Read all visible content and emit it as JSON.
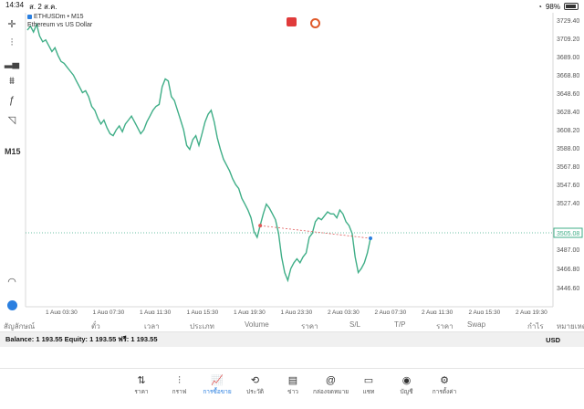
{
  "status": {
    "time": "14:34",
    "date": "ส. 2 ส.ค.",
    "battery": "98%"
  },
  "chart": {
    "symbol": "ETHUSDm • M15",
    "description": "Ethereum vs US Dollar",
    "timeframe": "M15",
    "current_price": "3505.08",
    "price_axis": [
      "3729.40",
      "3709.20",
      "3689.00",
      "3668.80",
      "3648.60",
      "3628.40",
      "3608.20",
      "3588.00",
      "3567.80",
      "3547.60",
      "3527.40",
      "3505.08",
      "3487.00",
      "3466.80",
      "3446.60"
    ],
    "time_axis": [
      "1 Aug 03:30",
      "1 Aug 07:30",
      "1 Aug 11:30",
      "1 Aug 15:30",
      "1 Aug 19:30",
      "1 Aug 23:30",
      "2 Aug 03:30",
      "2 Aug 07:30",
      "2 Aug 11:30",
      "2 Aug 15:30",
      "2 Aug 19:30"
    ],
    "colors": {
      "line": "#3fae87",
      "trend": "#e05a5a",
      "price_label": "#3fae87"
    }
  },
  "chart_data": {
    "type": "line",
    "y_range": [
      3435,
      3732
    ],
    "series": [
      {
        "values": [
          3718,
          3722,
          3716,
          3724,
          3712,
          3706,
          3708,
          3702,
          3696,
          3700,
          3692,
          3686,
          3684,
          3680,
          3676,
          3672,
          3666,
          3660,
          3654,
          3656,
          3650,
          3640,
          3636,
          3628,
          3622,
          3626,
          3618,
          3612,
          3610,
          3616,
          3620,
          3614,
          3622,
          3626,
          3630,
          3624,
          3618,
          3612,
          3616,
          3624,
          3630,
          3636,
          3640,
          3642,
          3660,
          3668,
          3666,
          3650,
          3646,
          3636,
          3626,
          3616,
          3600,
          3596,
          3606,
          3610,
          3600,
          3612,
          3624,
          3632,
          3636,
          3624,
          3608,
          3596,
          3586,
          3580,
          3574,
          3566,
          3560,
          3556,
          3546,
          3540,
          3534,
          3526,
          3512,
          3506,
          3518,
          3530,
          3540,
          3536,
          3530,
          3524,
          3510,
          3486,
          3470,
          3462,
          3474,
          3480,
          3484,
          3480,
          3486,
          3490,
          3506,
          3510,
          3522,
          3526,
          3524,
          3528,
          3532,
          3530,
          3530,
          3526,
          3534,
          3530,
          3522,
          3518,
          3510,
          3486,
          3470,
          3474,
          3480,
          3490,
          3505
        ]
      }
    ]
  },
  "toolbar": {
    "icons": [
      "crosshair-icon",
      "candles-icon",
      "bars-icon",
      "indicators-icon",
      "function-icon",
      "shapes-icon"
    ]
  },
  "tabs": [
    "สัญลักษณ์",
    "ตั๋ว",
    "เวลา",
    "ประเภท",
    "Volume",
    "ราคา",
    "S/L",
    "T/P",
    "ราคา",
    "Swap",
    "กำไร",
    "หมายเหตุ"
  ],
  "balance": {
    "text": "Balance: 1 193.55 Equity: 1 193.55 ฟรี: 1 193.55",
    "currency": "USD"
  },
  "nav": [
    {
      "label": "ราคา",
      "icon": "quotes-icon"
    },
    {
      "label": "กราฟ",
      "icon": "chart-icon"
    },
    {
      "label": "การซื้อขาย",
      "icon": "trade-icon"
    },
    {
      "label": "ประวัติ",
      "icon": "history-icon"
    },
    {
      "label": "ข่าว",
      "icon": "news-icon"
    },
    {
      "label": "กล่องจดหมาย",
      "icon": "mail-icon"
    },
    {
      "label": "แชท",
      "icon": "chat-icon"
    },
    {
      "label": "บัญชี",
      "icon": "account-icon"
    },
    {
      "label": "การตั้งค่า",
      "icon": "settings-icon"
    }
  ]
}
